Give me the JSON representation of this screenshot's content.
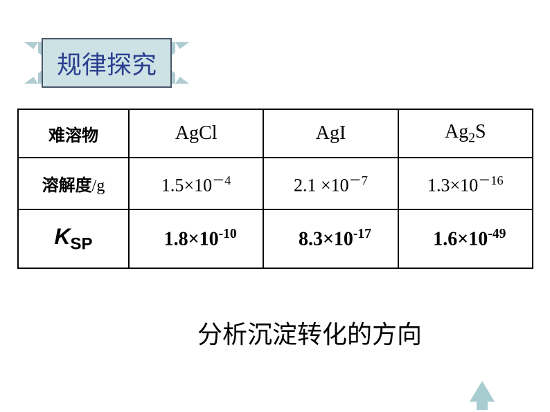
{
  "banner": {
    "title": "规律探究",
    "bg_color": "#cce2e5",
    "border_color": "#4a5568",
    "text_color": "#2a3f8f",
    "ribbon_color": "#afcdd1"
  },
  "table": {
    "type": "table",
    "border_color": "#000000",
    "columns": [
      "难溶物",
      "AgCl",
      "AgI",
      "Ag2S"
    ],
    "rows": [
      {
        "header": "难溶物",
        "cells": [
          "AgCl",
          "AgI",
          "Ag₂S"
        ]
      },
      {
        "header": "溶解度/g",
        "cells": [
          "1.5×10⁻⁴",
          "2.1 ×10⁻⁷",
          "1.3×10⁻¹⁶"
        ]
      },
      {
        "header": "K_SP",
        "cells": [
          "1.8×10⁻¹⁰",
          "8.3×10⁻¹⁷",
          "1.6×10⁻⁴⁹"
        ]
      }
    ],
    "compounds": {
      "c1": "AgCl",
      "c2": "AgI",
      "c3_base": "Ag",
      "c3_sub": "2",
      "c3_suffix": "S"
    },
    "headers": {
      "r1": "难溶物",
      "r2_prefix": "溶解度",
      "r2_suffix": "/g",
      "r3_k": "K",
      "r3_sp": "SP"
    },
    "solubility": {
      "s1_base": "1.5×10",
      "s1_exp": "－4",
      "s2_base": "2.1 ×10",
      "s2_exp": "－7",
      "s3_base": "1.3×10",
      "s3_exp": "－16"
    },
    "ksp": {
      "k1_base": "1.8×10",
      "k1_exp": "-10",
      "k2_base": "8.3×10",
      "k2_exp": "-17",
      "k3_base": "1.6×10",
      "k3_exp": "-49"
    }
  },
  "caption": "分析沉淀转化的方向",
  "arrow_color": "#a8cdd1"
}
